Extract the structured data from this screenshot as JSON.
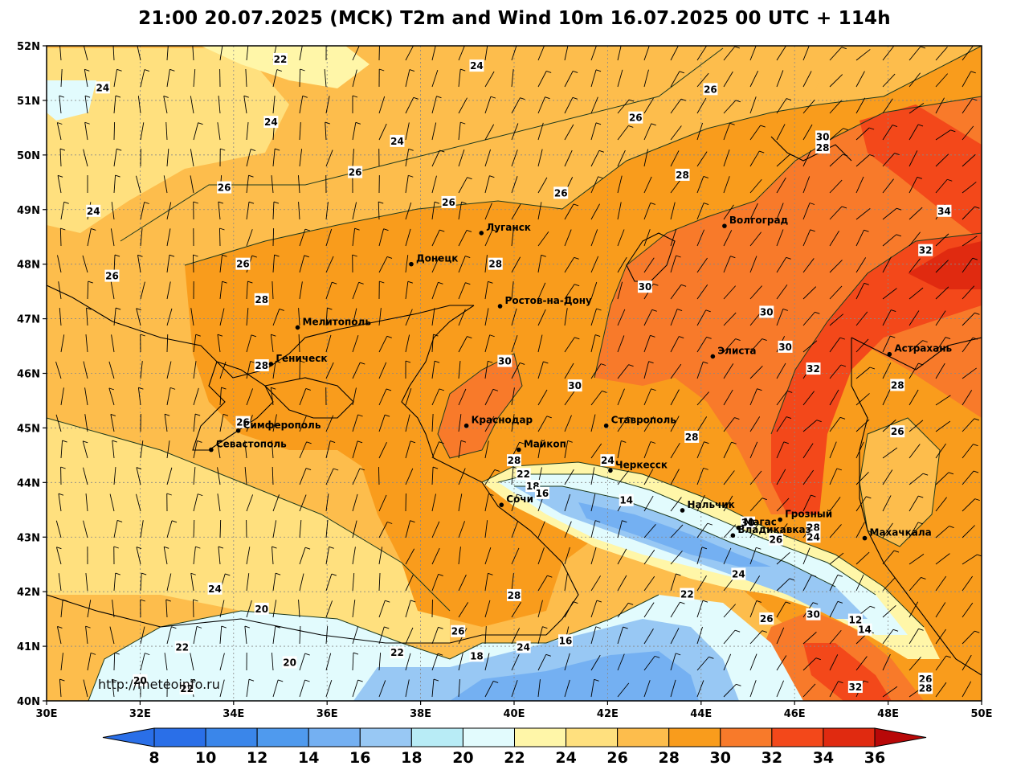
{
  "title": "21:00 20.07.2025 (MCK) T2m and Wind 10m 16.07.2025 00 UTC + 114h",
  "watermark": "http://meteoinfo.ru",
  "lat_labels": [
    "52N",
    "51N",
    "50N",
    "49N",
    "48N",
    "47N",
    "46N",
    "45N",
    "44N",
    "43N",
    "42N",
    "41N",
    "40N"
  ],
  "lon_labels": [
    "30E",
    "32E",
    "34E",
    "36E",
    "38E",
    "40E",
    "42E",
    "44E",
    "46E",
    "48E",
    "50E"
  ],
  "colorbar": {
    "values": [
      "8",
      "10",
      "12",
      "14",
      "16",
      "18",
      "20",
      "22",
      "24",
      "26",
      "28",
      "30",
      "32",
      "34",
      "36"
    ],
    "colors": [
      "#2a6fe8",
      "#3a86ea",
      "#4f9aee",
      "#74b0f2",
      "#98c8f4",
      "#b8ecf6",
      "#e2fbfd",
      "#fff6a8",
      "#ffe07e",
      "#fdbd4c",
      "#f99c1c",
      "#f87a2a",
      "#f3481a",
      "#e02a10",
      "#c21010"
    ],
    "left_cap": "#2a6fe8",
    "right_cap": "#b80808"
  },
  "map_colors": {
    "t20": "#e2fbfd",
    "t22": "#fff6a8",
    "t24": "#ffe07e",
    "t26": "#fdbd4c",
    "t28": "#f99c1c",
    "t30": "#f87a2a",
    "t32": "#f3481a",
    "t34": "#e02a10",
    "t16": "#98c8f4",
    "t14": "#74b0f2",
    "t12": "#4f9aee"
  },
  "cities": [
    {
      "name": "Волгоград",
      "lon": 44.5,
      "lat": 48.7
    },
    {
      "name": "Луганск",
      "lon": 39.3,
      "lat": 48.57
    },
    {
      "name": "Донецк",
      "lon": 37.8,
      "lat": 48.0
    },
    {
      "name": "Ростов-на-Дону",
      "lon": 39.7,
      "lat": 47.23
    },
    {
      "name": "Мелитополь",
      "lon": 35.37,
      "lat": 46.84
    },
    {
      "name": "Элиста",
      "lon": 44.25,
      "lat": 46.31
    },
    {
      "name": "Астрахань",
      "lon": 48.03,
      "lat": 46.35
    },
    {
      "name": "Геническ",
      "lon": 34.8,
      "lat": 46.17
    },
    {
      "name": "Краснодар",
      "lon": 38.98,
      "lat": 45.04
    },
    {
      "name": "Ставрополь",
      "lon": 41.97,
      "lat": 45.04
    },
    {
      "name": "Симферополь",
      "lon": 34.1,
      "lat": 44.95
    },
    {
      "name": "Майкоп",
      "lon": 40.1,
      "lat": 44.6
    },
    {
      "name": "Севастополь",
      "lon": 33.52,
      "lat": 44.6
    },
    {
      "name": "Черкесск",
      "lon": 42.06,
      "lat": 44.22
    },
    {
      "name": "Нальчик",
      "lon": 43.6,
      "lat": 43.49
    },
    {
      "name": "Сочи",
      "lon": 39.73,
      "lat": 43.59
    },
    {
      "name": "Грозный",
      "lon": 45.69,
      "lat": 43.32
    },
    {
      "name": "Магас",
      "lon": 44.8,
      "lat": 43.17
    },
    {
      "name": "Владикавказ",
      "lon": 44.68,
      "lat": 43.03
    },
    {
      "name": "Махачкала",
      "lon": 47.5,
      "lat": 42.98
    }
  ],
  "isotherm_labels": [
    {
      "t": "22",
      "lon": 35.0,
      "lat": 51.75
    },
    {
      "t": "24",
      "lon": 39.2,
      "lat": 51.63
    },
    {
      "t": "24",
      "lon": 31.2,
      "lat": 51.23
    },
    {
      "t": "24",
      "lon": 34.8,
      "lat": 50.6
    },
    {
      "t": "24",
      "lon": 37.5,
      "lat": 50.25
    },
    {
      "t": "26",
      "lon": 44.2,
      "lat": 51.2
    },
    {
      "t": "26",
      "lon": 42.6,
      "lat": 50.68
    },
    {
      "t": "30",
      "lon": 46.6,
      "lat": 50.33
    },
    {
      "t": "28",
      "lon": 46.6,
      "lat": 50.13
    },
    {
      "t": "26",
      "lon": 36.6,
      "lat": 49.68
    },
    {
      "t": "28",
      "lon": 43.6,
      "lat": 49.63
    },
    {
      "t": "26",
      "lon": 33.8,
      "lat": 49.4
    },
    {
      "t": "26",
      "lon": 41.0,
      "lat": 49.3
    },
    {
      "t": "26",
      "lon": 38.6,
      "lat": 49.13
    },
    {
      "t": "24",
      "lon": 31.0,
      "lat": 48.97
    },
    {
      "t": "34",
      "lon": 49.2,
      "lat": 48.97
    },
    {
      "t": "26",
      "lon": 34.2,
      "lat": 48.0
    },
    {
      "t": "28",
      "lon": 39.6,
      "lat": 48.0
    },
    {
      "t": "32",
      "lon": 48.8,
      "lat": 48.25
    },
    {
      "t": "30",
      "lon": 42.8,
      "lat": 47.58
    },
    {
      "t": "26",
      "lon": 31.4,
      "lat": 47.78
    },
    {
      "t": "28",
      "lon": 34.6,
      "lat": 47.35
    },
    {
      "t": "30",
      "lon": 45.4,
      "lat": 47.12
    },
    {
      "t": "30",
      "lon": 45.8,
      "lat": 46.48
    },
    {
      "t": "30",
      "lon": 39.8,
      "lat": 46.22
    },
    {
      "t": "32",
      "lon": 46.4,
      "lat": 46.08
    },
    {
      "t": "30",
      "lon": 41.3,
      "lat": 45.77
    },
    {
      "t": "28",
      "lon": 48.2,
      "lat": 45.78
    },
    {
      "t": "28",
      "lon": 34.6,
      "lat": 46.14
    },
    {
      "t": "26",
      "lon": 34.2,
      "lat": 45.1
    },
    {
      "t": "26",
      "lon": 48.2,
      "lat": 44.93
    },
    {
      "t": "28",
      "lon": 43.8,
      "lat": 44.83
    },
    {
      "t": "24",
      "lon": 42.0,
      "lat": 44.4
    },
    {
      "t": "28",
      "lon": 40.0,
      "lat": 44.4
    },
    {
      "t": "22",
      "lon": 40.2,
      "lat": 44.15
    },
    {
      "t": "18",
      "lon": 40.4,
      "lat": 43.93
    },
    {
      "t": "16",
      "lon": 40.6,
      "lat": 43.8
    },
    {
      "t": "14",
      "lon": 42.4,
      "lat": 43.67
    },
    {
      "t": "30",
      "lon": 45.0,
      "lat": 43.26
    },
    {
      "t": "28",
      "lon": 46.4,
      "lat": 43.17
    },
    {
      "t": "26",
      "lon": 45.6,
      "lat": 42.95
    },
    {
      "t": "24",
      "lon": 46.4,
      "lat": 43.0
    },
    {
      "t": "24",
      "lon": 44.8,
      "lat": 42.32
    },
    {
      "t": "24",
      "lon": 33.6,
      "lat": 42.05
    },
    {
      "t": "28",
      "lon": 40.0,
      "lat": 41.93
    },
    {
      "t": "22",
      "lon": 43.7,
      "lat": 41.95
    },
    {
      "t": "20",
      "lon": 34.6,
      "lat": 41.68
    },
    {
      "t": "26",
      "lon": 45.4,
      "lat": 41.5
    },
    {
      "t": "30",
      "lon": 46.4,
      "lat": 41.58
    },
    {
      "t": "12",
      "lon": 47.3,
      "lat": 41.48
    },
    {
      "t": "14",
      "lon": 47.5,
      "lat": 41.3
    },
    {
      "t": "26",
      "lon": 38.8,
      "lat": 41.27
    },
    {
      "t": "16",
      "lon": 41.1,
      "lat": 41.1
    },
    {
      "t": "22",
      "lon": 32.9,
      "lat": 40.98
    },
    {
      "t": "24",
      "lon": 40.2,
      "lat": 40.98
    },
    {
      "t": "22",
      "lon": 37.5,
      "lat": 40.88
    },
    {
      "t": "18",
      "lon": 39.2,
      "lat": 40.82
    },
    {
      "t": "20",
      "lon": 35.2,
      "lat": 40.7
    },
    {
      "t": "26",
      "lon": 48.8,
      "lat": 40.4
    },
    {
      "t": "28",
      "lon": 48.8,
      "lat": 40.23
    },
    {
      "t": "32",
      "lon": 47.3,
      "lat": 40.25
    },
    {
      "t": "20",
      "lon": 32.0,
      "lat": 40.37
    },
    {
      "t": "22",
      "lon": 33.0,
      "lat": 40.22
    }
  ]
}
